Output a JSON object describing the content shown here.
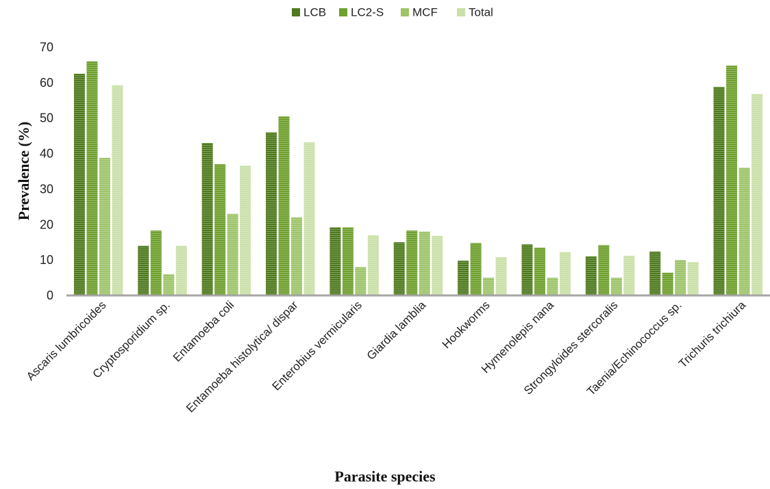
{
  "chart_data": {
    "type": "bar",
    "title": "",
    "xlabel": "Parasite species",
    "ylabel": "Prevalence (%)",
    "ylim": [
      0,
      70
    ],
    "yticks": [
      0,
      10,
      20,
      30,
      40,
      50,
      60,
      70
    ],
    "grid": false,
    "legend_position": "top",
    "categories": [
      "Ascaris lumbricoides",
      "Cryptosporidium sp.",
      "Entamoeba coli",
      "Entamoeba histolytica/ dispar",
      "Enterobius vermicularis",
      "Giardia lamblia",
      "Hookworms",
      "Hymenolepis nana",
      "Strongyloides stercoralis",
      "Taenia/Echinococcus sp.",
      "Trichuris trichiura"
    ],
    "series": [
      {
        "name": "LCB",
        "color": "#4f7a1f",
        "values": [
          62.5,
          14.0,
          43.0,
          46.0,
          19.2,
          15.0,
          9.8,
          14.4,
          11.0,
          12.4,
          58.8
        ]
      },
      {
        "name": "LC2-S",
        "color": "#6fa02e",
        "values": [
          66.0,
          18.3,
          37.0,
          50.5,
          19.2,
          18.3,
          14.8,
          13.5,
          14.2,
          6.4,
          64.8
        ]
      },
      {
        "name": "MCF",
        "color": "#9ec46a",
        "values": [
          38.8,
          6.0,
          23.0,
          22.0,
          8.0,
          18.0,
          5.0,
          5.0,
          5.0,
          10.0,
          36.0
        ]
      },
      {
        "name": "Total",
        "color": "#c9e0a8",
        "values": [
          59.3,
          14.0,
          36.6,
          43.2,
          17.0,
          16.8,
          10.8,
          12.2,
          11.2,
          9.4,
          56.8
        ]
      }
    ]
  }
}
